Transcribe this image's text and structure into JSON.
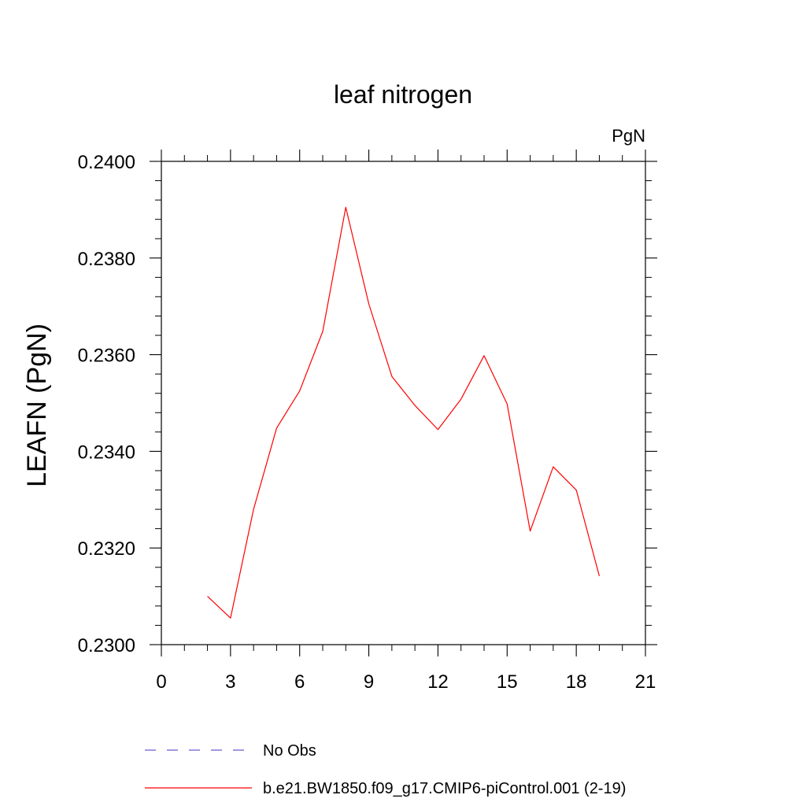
{
  "chart_data": {
    "type": "line",
    "title": "leaf nitrogen",
    "units_label": "PgN",
    "ylabel": "LEAFN  (PgN)",
    "xlabel": "",
    "xlim": [
      0,
      21
    ],
    "ylim": [
      0.23,
      0.24
    ],
    "xticks": [
      0,
      3,
      6,
      9,
      12,
      15,
      18,
      21
    ],
    "xtick_labels": [
      "0",
      "3",
      "6",
      "9",
      "12",
      "15",
      "18",
      "21"
    ],
    "yticks": [
      0.23,
      0.232,
      0.234,
      0.236,
      0.238,
      0.24
    ],
    "ytick_labels": [
      "0.2300",
      "0.2320",
      "0.2340",
      "0.2360",
      "0.2380",
      "0.2400"
    ],
    "grid": false,
    "legend_placement": "bottom",
    "series": [
      {
        "name": "No Obs",
        "color": "#6a5acd",
        "style": "dashed",
        "x": [],
        "y": []
      },
      {
        "name": "b.e21.BW1850.f09_g17.CMIP6-piControl.001 (2-19)",
        "color": "#ff0000",
        "style": "solid",
        "x": [
          2,
          3,
          4,
          5,
          6,
          7,
          8,
          9,
          10,
          11,
          12,
          13,
          14,
          15,
          16,
          17,
          18,
          19
        ],
        "y": [
          0.231,
          0.23055,
          0.2328,
          0.23448,
          0.23525,
          0.23648,
          0.23905,
          0.23705,
          0.23555,
          0.23495,
          0.23445,
          0.23508,
          0.23598,
          0.23498,
          0.23235,
          0.23368,
          0.2332,
          0.23142
        ]
      }
    ]
  }
}
